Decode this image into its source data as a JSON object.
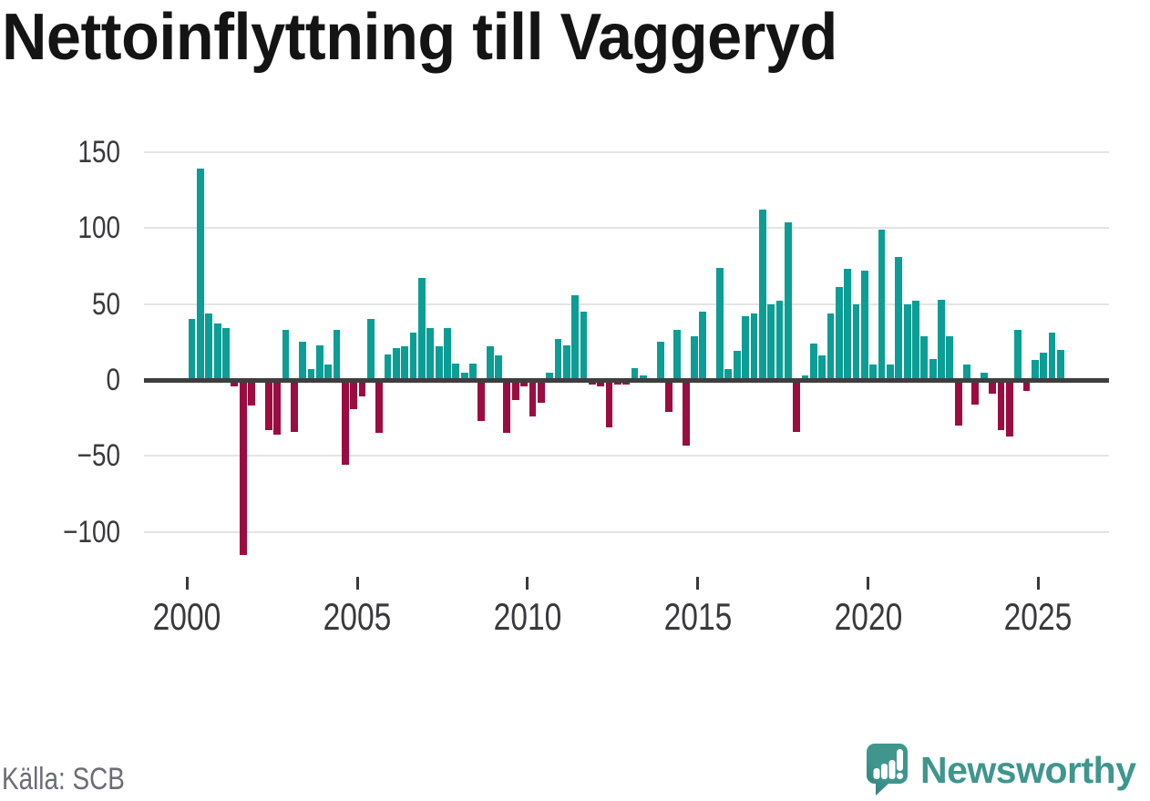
{
  "title": "Nettoinflyttning till Vaggeryd",
  "footer": {
    "source": "Källa: SCB",
    "brand": "Newsworthy"
  },
  "colors": {
    "positive_bar": "#0C9D95",
    "negative_bar": "#9B0C40",
    "gridline": "#E4E4E4",
    "zero_axis": "#3E3E3E",
    "tick_label": "#39393D",
    "title": "#141414",
    "source_text": "#6C6C75",
    "brand": "#3E968D",
    "background": "#FFFFFF"
  },
  "chart_data": {
    "type": "bar",
    "title": "Nettoinflyttning till Vaggeryd",
    "xlabel": "",
    "ylabel": "",
    "grid": true,
    "ylim": [
      -125,
      155
    ],
    "yticks": [
      {
        "value": 150,
        "label": "150"
      },
      {
        "value": 100,
        "label": "100"
      },
      {
        "value": 50,
        "label": "50"
      },
      {
        "value": 0,
        "label": "0"
      },
      {
        "value": -50,
        "label": "−50"
      },
      {
        "value": -100,
        "label": "−100"
      }
    ],
    "xticks": [
      {
        "value": 2000,
        "label": "2000"
      },
      {
        "value": 2005,
        "label": "2005"
      },
      {
        "value": 2010,
        "label": "2010"
      },
      {
        "value": 2015,
        "label": "2015"
      },
      {
        "value": 2020,
        "label": "2020"
      },
      {
        "value": 2025,
        "label": "2025"
      }
    ],
    "periods": [
      "2000K1",
      "2000K2",
      "2000K3",
      "2000K4",
      "2001K1",
      "2001K2",
      "2001K3",
      "2001K4",
      "2002K1",
      "2002K2",
      "2002K3",
      "2002K4",
      "2003K1",
      "2003K2",
      "2003K3",
      "2003K4",
      "2004K1",
      "2004K2",
      "2004K3",
      "2004K4",
      "2005K1",
      "2005K2",
      "2005K3",
      "2005K4",
      "2006K1",
      "2006K2",
      "2006K3",
      "2006K4",
      "2007K1",
      "2007K2",
      "2007K3",
      "2007K4",
      "2008K1",
      "2008K2",
      "2008K3",
      "2008K4",
      "2009K1",
      "2009K2",
      "2009K3",
      "2009K4",
      "2010K1",
      "2010K2",
      "2010K3",
      "2010K4",
      "2011K1",
      "2011K2",
      "2011K3",
      "2011K4",
      "2012K1",
      "2012K2",
      "2012K3",
      "2012K4",
      "2013K1",
      "2013K2",
      "2013K3",
      "2013K4",
      "2014K1",
      "2014K2",
      "2014K3",
      "2014K4",
      "2015K1",
      "2015K2",
      "2015K3",
      "2015K4",
      "2016K1",
      "2016K2",
      "2016K3",
      "2016K4",
      "2017K1",
      "2017K2",
      "2017K3",
      "2017K4",
      "2018K1",
      "2018K2",
      "2018K3",
      "2018K4",
      "2019K1",
      "2019K2",
      "2019K3",
      "2019K4",
      "2020K1",
      "2020K2",
      "2020K3",
      "2020K4",
      "2021K1",
      "2021K2",
      "2021K3",
      "2021K4",
      "2022K1",
      "2022K2",
      "2022K3",
      "2022K4",
      "2023K1",
      "2023K2",
      "2023K3",
      "2023K4",
      "2024K1",
      "2024K2",
      "2024K3",
      "2024K4",
      "2025K1",
      "2025K2",
      "2025K3"
    ],
    "values": [
      40,
      139,
      44,
      37,
      34,
      -4,
      -115,
      -17,
      0,
      -33,
      -36,
      33,
      -34,
      25,
      7,
      23,
      10,
      33,
      -56,
      -19,
      -11,
      40,
      -35,
      17,
      21,
      22,
      31,
      67,
      34,
      22,
      34,
      11,
      5,
      11,
      -27,
      22,
      16,
      -35,
      -13,
      -4,
      -24,
      -15,
      5,
      27,
      23,
      56,
      45,
      -3,
      -4,
      -31,
      -3,
      -3,
      8,
      3,
      0,
      25,
      -21,
      33,
      -43,
      29,
      45,
      -2,
      74,
      7,
      19,
      42,
      44,
      112,
      50,
      52,
      104,
      -34,
      3,
      24,
      16,
      44,
      61,
      73,
      50,
      72,
      10,
      99,
      10,
      81,
      50,
      52,
      29,
      14,
      53,
      29,
      -30,
      10,
      -16,
      5,
      -9,
      -33,
      -37,
      33,
      -7,
      13,
      18,
      31,
      20
    ]
  }
}
